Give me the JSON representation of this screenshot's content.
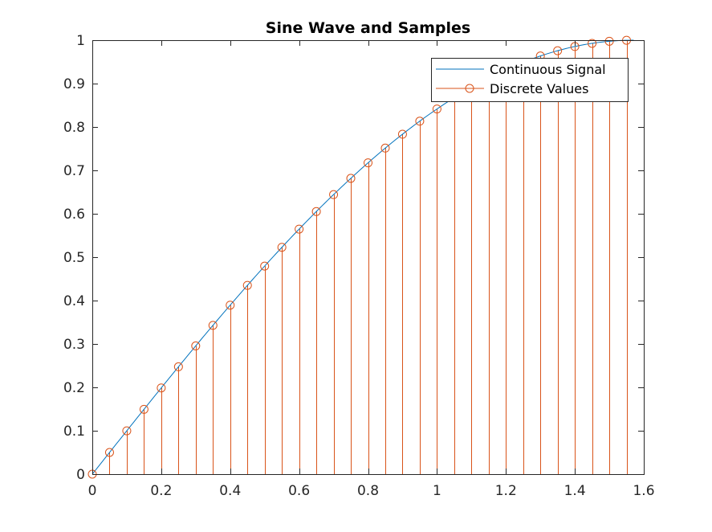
{
  "chart_data": {
    "type": "line",
    "title": "Sine Wave and Samples",
    "xlim": [
      0,
      1.6
    ],
    "ylim": [
      0,
      1
    ],
    "x_ticks": [
      "0",
      "0.2",
      "0.4",
      "0.6",
      "0.8",
      "1",
      "1.2",
      "1.4",
      "1.6"
    ],
    "y_ticks": [
      "0",
      "0.1",
      "0.2",
      "0.3",
      "0.4",
      "0.5",
      "0.6",
      "0.7",
      "0.8",
      "0.9",
      "1"
    ],
    "grid": false,
    "legend_position": "top-right",
    "series": [
      {
        "name": "Continuous Signal",
        "style": "line",
        "color": "#0072BD",
        "function": "sin(x)",
        "x_range": [
          0,
          1.5708
        ]
      },
      {
        "name": "Discrete Values",
        "style": "stem",
        "color": "#D95319",
        "x": [
          0,
          0.05,
          0.1,
          0.15,
          0.2,
          0.25,
          0.3,
          0.35,
          0.4,
          0.45,
          0.5,
          0.55,
          0.6,
          0.65,
          0.7,
          0.75,
          0.8,
          0.85,
          0.9,
          0.95,
          1.0,
          1.05,
          1.1,
          1.15,
          1.2,
          1.25,
          1.3,
          1.35,
          1.4,
          1.45,
          1.5,
          1.55
        ],
        "y": [
          0,
          0.05,
          0.0998,
          0.1494,
          0.1987,
          0.2474,
          0.2955,
          0.3429,
          0.3894,
          0.435,
          0.4794,
          0.5227,
          0.5646,
          0.6052,
          0.6442,
          0.6816,
          0.7174,
          0.7513,
          0.7833,
          0.8134,
          0.8415,
          0.8674,
          0.8912,
          0.9128,
          0.932,
          0.949,
          0.9636,
          0.9757,
          0.9854,
          0.9927,
          0.9975,
          0.9998
        ]
      }
    ]
  }
}
